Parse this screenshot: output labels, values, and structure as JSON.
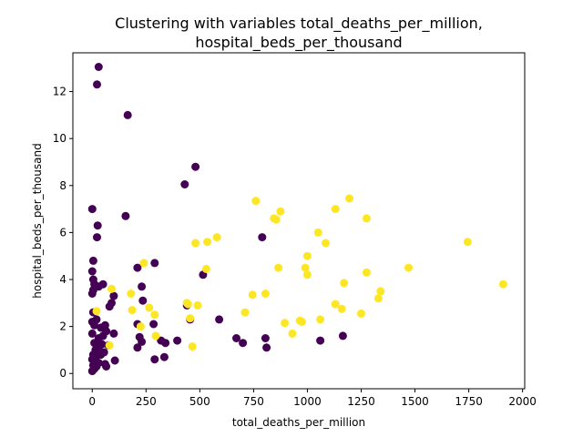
{
  "chart_data": {
    "type": "scatter",
    "title_lines": [
      "Clustering with variables total_deaths_per_million,",
      "hospital_beds_per_thousand"
    ],
    "xlabel": "total_deaths_per_million",
    "ylabel": "hospital_beds_per_thousand",
    "xlim": [
      -90,
      2010
    ],
    "ylim": [
      -0.65,
      13.65
    ],
    "x_ticks": [
      0,
      250,
      500,
      750,
      1000,
      1250,
      1500,
      1750,
      2000
    ],
    "y_ticks": [
      0,
      2,
      4,
      6,
      8,
      10,
      12
    ],
    "grid": false,
    "cluster_colors": {
      "0": "#440154",
      "1": "#fde725"
    },
    "points": [
      [
        30,
        13.05,
        0
      ],
      [
        22,
        12.3,
        0
      ],
      [
        165,
        11.0,
        0
      ],
      [
        480,
        8.8,
        0
      ],
      [
        430,
        8.05,
        0
      ],
      [
        0,
        7.0,
        0
      ],
      [
        25,
        6.3,
        0
      ],
      [
        22,
        5.8,
        0
      ],
      [
        155,
        6.7,
        0
      ],
      [
        790,
        5.8,
        0
      ],
      [
        5,
        4.8,
        0
      ],
      [
        0,
        4.35,
        0
      ],
      [
        210,
        4.5,
        0
      ],
      [
        290,
        4.7,
        0
      ],
      [
        515,
        4.2,
        0
      ],
      [
        5,
        4.0,
        0
      ],
      [
        10,
        3.8,
        0
      ],
      [
        30,
        3.7,
        0
      ],
      [
        50,
        3.8,
        0
      ],
      [
        5,
        3.55,
        0
      ],
      [
        0,
        3.4,
        0
      ],
      [
        100,
        3.3,
        0
      ],
      [
        230,
        3.7,
        0
      ],
      [
        235,
        3.1,
        0
      ],
      [
        90,
        3.0,
        0
      ],
      [
        80,
        2.85,
        0
      ],
      [
        440,
        2.9,
        0
      ],
      [
        455,
        2.3,
        0
      ],
      [
        590,
        2.3,
        0
      ],
      [
        5,
        2.6,
        0
      ],
      [
        0,
        2.2,
        0
      ],
      [
        10,
        2.05,
        0
      ],
      [
        20,
        2.3,
        0
      ],
      [
        40,
        1.95,
        0
      ],
      [
        60,
        2.05,
        0
      ],
      [
        210,
        2.1,
        0
      ],
      [
        285,
        2.1,
        0
      ],
      [
        220,
        1.55,
        0
      ],
      [
        100,
        1.7,
        0
      ],
      [
        0,
        1.7,
        0
      ],
      [
        30,
        1.5,
        0
      ],
      [
        50,
        1.6,
        0
      ],
      [
        65,
        1.8,
        0
      ],
      [
        10,
        1.3,
        0
      ],
      [
        25,
        1.2,
        0
      ],
      [
        45,
        1.25,
        0
      ],
      [
        75,
        1.2,
        0
      ],
      [
        15,
        1.0,
        0
      ],
      [
        35,
        0.95,
        0
      ],
      [
        55,
        0.9,
        0
      ],
      [
        5,
        0.8,
        0
      ],
      [
        20,
        0.75,
        0
      ],
      [
        40,
        0.8,
        0
      ],
      [
        0,
        0.6,
        0
      ],
      [
        15,
        0.5,
        0
      ],
      [
        30,
        0.45,
        0
      ],
      [
        5,
        0.35,
        0
      ],
      [
        20,
        0.3,
        0
      ],
      [
        10,
        0.2,
        0
      ],
      [
        0,
        0.1,
        0
      ],
      [
        60,
        0.4,
        0
      ],
      [
        65,
        0.3,
        0
      ],
      [
        105,
        0.55,
        0
      ],
      [
        210,
        1.1,
        0
      ],
      [
        230,
        1.35,
        0
      ],
      [
        320,
        1.4,
        0
      ],
      [
        340,
        1.3,
        0
      ],
      [
        395,
        1.4,
        0
      ],
      [
        290,
        0.6,
        0
      ],
      [
        335,
        0.7,
        0
      ],
      [
        670,
        1.5,
        0
      ],
      [
        700,
        1.3,
        0
      ],
      [
        805,
        1.5,
        0
      ],
      [
        810,
        1.1,
        0
      ],
      [
        1060,
        1.4,
        0
      ],
      [
        1165,
        1.6,
        0
      ],
      [
        1195,
        7.45,
        1
      ],
      [
        760,
        7.35,
        1
      ],
      [
        1130,
        7.0,
        1
      ],
      [
        875,
        6.9,
        1
      ],
      [
        1275,
        6.6,
        1
      ],
      [
        845,
        6.6,
        1
      ],
      [
        855,
        6.55,
        1
      ],
      [
        1050,
        6.0,
        1
      ],
      [
        580,
        5.8,
        1
      ],
      [
        480,
        5.55,
        1
      ],
      [
        535,
        5.6,
        1
      ],
      [
        1085,
        5.55,
        1
      ],
      [
        1745,
        5.6,
        1
      ],
      [
        1000,
        5.0,
        1
      ],
      [
        865,
        4.5,
        1
      ],
      [
        990,
        4.5,
        1
      ],
      [
        1470,
        4.5,
        1
      ],
      [
        530,
        4.45,
        1
      ],
      [
        1000,
        4.2,
        1
      ],
      [
        1275,
        4.3,
        1
      ],
      [
        1170,
        3.85,
        1
      ],
      [
        1910,
        3.8,
        1
      ],
      [
        240,
        4.7,
        1
      ],
      [
        180,
        3.4,
        1
      ],
      [
        745,
        3.35,
        1
      ],
      [
        805,
        3.4,
        1
      ],
      [
        1340,
        3.5,
        1
      ],
      [
        1330,
        3.2,
        1
      ],
      [
        1130,
        2.95,
        1
      ],
      [
        1160,
        2.75,
        1
      ],
      [
        445,
        2.95,
        1
      ],
      [
        490,
        2.9,
        1
      ],
      [
        265,
        2.8,
        1
      ],
      [
        185,
        2.7,
        1
      ],
      [
        290,
        2.5,
        1
      ],
      [
        710,
        2.6,
        1
      ],
      [
        1250,
        2.55,
        1
      ],
      [
        455,
        2.35,
        1
      ],
      [
        1060,
        2.3,
        1
      ],
      [
        965,
        2.25,
        1
      ],
      [
        975,
        2.2,
        1
      ],
      [
        895,
        2.15,
        1
      ],
      [
        225,
        2.0,
        1
      ],
      [
        930,
        1.7,
        1
      ],
      [
        295,
        1.6,
        1
      ],
      [
        465,
        1.15,
        1
      ],
      [
        80,
        1.2,
        1
      ],
      [
        90,
        3.6,
        1
      ],
      [
        20,
        2.65,
        1
      ],
      [
        440,
        3.0,
        1
      ]
    ]
  }
}
